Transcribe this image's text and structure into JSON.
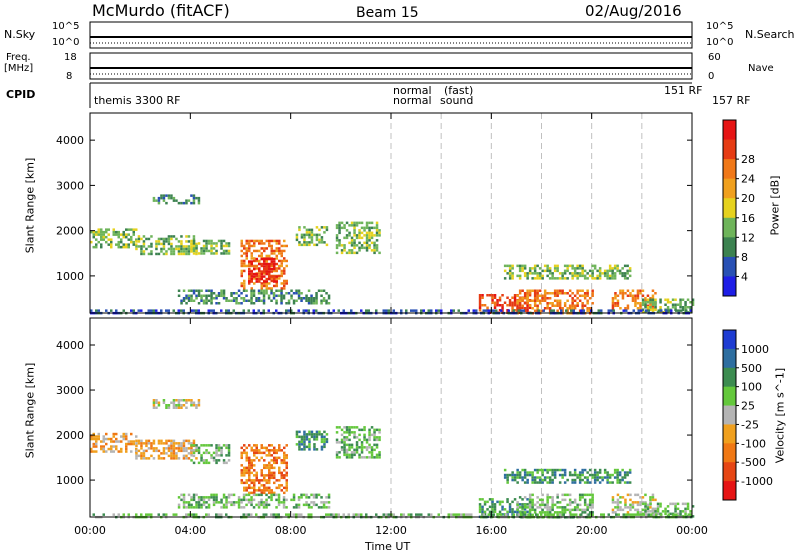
{
  "header": {
    "station": "McMurdo (fitACF)",
    "beam": "Beam 15",
    "date": "02/Aug/2016"
  },
  "status_panels": {
    "nsky_label": "N.Sky",
    "nsky_scale_top": "10^5",
    "nsky_scale_bottom": "10^0",
    "nsearch_label": "N.Search",
    "nsearch_scale_top": "10^5",
    "nsearch_scale_bottom": "10^0",
    "freq_label_1": "Freq.",
    "freq_label_2": "[MHz]",
    "freq_top": "18",
    "freq_bottom": "8",
    "nave_label": "Nave",
    "nave_top": "60",
    "nave_bottom": "0",
    "cpid_label": "CPID",
    "cpid_entries": [
      "themis 3300 RF",
      "normal",
      "normal",
      "(fast)",
      "sound",
      "151 RF",
      "157 RF"
    ]
  },
  "colors": {
    "power": [
      "#1e1ee6",
      "#2850b4",
      "#3c8250",
      "#6eb45a",
      "#e6d21e",
      "#f0a01e",
      "#f07818",
      "#e63c14",
      "#e61414"
    ],
    "velocity": [
      "#1e3cd2",
      "#2e6ea0",
      "#3c8c50",
      "#64c83c",
      "#b4b4b4",
      "#f0a01e",
      "#f07814",
      "#e64614",
      "#e61414"
    ],
    "grid": "#c0c0c0"
  },
  "chart_data": [
    {
      "type": "heatmap",
      "title": "Power",
      "ylabel": "Slant Range [km]",
      "xlabel": "Time UT",
      "x_ticks": [
        "00:00",
        "04:00",
        "08:00",
        "12:00",
        "16:00",
        "20:00",
        "00:00"
      ],
      "y_ticks": [
        "1000",
        "2000",
        "3000",
        "4000"
      ],
      "xlim": [
        0,
        24
      ],
      "ylim": [
        180,
        4600
      ],
      "colorbar_label": "Power [dB]",
      "colorbar_ticks": [
        "4",
        "8",
        "12",
        "16",
        "20",
        "24",
        "28"
      ],
      "regions": [
        {
          "t0": 0.0,
          "t1": 1.8,
          "r0": 1650,
          "r1": 2050,
          "level": 3
        },
        {
          "t0": 1.8,
          "t1": 4.2,
          "r0": 1500,
          "r1": 1900,
          "level": 3
        },
        {
          "t0": 2.5,
          "t1": 4.3,
          "r0": 2600,
          "r1": 2800,
          "level": 2
        },
        {
          "t0": 4.0,
          "t1": 5.5,
          "r0": 1500,
          "r1": 1800,
          "level": 3
        },
        {
          "t0": 6.0,
          "t1": 7.8,
          "r0": 700,
          "r1": 1800,
          "level": 6
        },
        {
          "t0": 6.3,
          "t1": 7.4,
          "r0": 900,
          "r1": 1400,
          "level": 8
        },
        {
          "t0": 8.2,
          "t1": 9.4,
          "r0": 1700,
          "r1": 2100,
          "level": 3
        },
        {
          "t0": 9.8,
          "t1": 11.5,
          "r0": 1500,
          "r1": 2200,
          "level": 3
        },
        {
          "t0": 3.5,
          "t1": 9.5,
          "r0": 400,
          "r1": 700,
          "level": 2
        },
        {
          "t0": 15.5,
          "t1": 17.5,
          "r0": 200,
          "r1": 600,
          "level": 7
        },
        {
          "t0": 17.0,
          "t1": 20.0,
          "r0": 200,
          "r1": 700,
          "level": 6
        },
        {
          "t0": 16.5,
          "t1": 21.5,
          "r0": 950,
          "r1": 1250,
          "level": 3
        },
        {
          "t0": 20.8,
          "t1": 22.5,
          "r0": 300,
          "r1": 700,
          "level": 6
        },
        {
          "t0": 22.0,
          "t1": 24.0,
          "r0": 200,
          "r1": 500,
          "level": 3
        },
        {
          "t0": 0.0,
          "t1": 24.0,
          "r0": 180,
          "r1": 260,
          "level": 1
        }
      ]
    },
    {
      "type": "heatmap",
      "title": "Velocity",
      "ylabel": "Slant Range [km]",
      "xlabel": "Time UT",
      "x_ticks": [
        "00:00",
        "04:00",
        "08:00",
        "12:00",
        "16:00",
        "20:00",
        "00:00"
      ],
      "y_ticks": [
        "1000",
        "2000",
        "3000",
        "4000"
      ],
      "xlim": [
        0,
        24
      ],
      "ylim": [
        180,
        4600
      ],
      "colorbar_label": "Velocity [m s^-1]",
      "colorbar_ticks": [
        "1000",
        "500",
        "100",
        "25",
        "-25",
        "-100",
        "-500",
        "-1000"
      ],
      "regions": [
        {
          "t0": 0.0,
          "t1": 1.8,
          "r0": 1650,
          "r1": 2050,
          "level": 5
        },
        {
          "t0": 1.8,
          "t1": 4.2,
          "r0": 1500,
          "r1": 1900,
          "level": 5
        },
        {
          "t0": 2.5,
          "t1": 4.3,
          "r0": 2600,
          "r1": 2800,
          "level": 4
        },
        {
          "t0": 4.0,
          "t1": 5.5,
          "r0": 1400,
          "r1": 1800,
          "level": 3
        },
        {
          "t0": 6.0,
          "t1": 7.8,
          "r0": 700,
          "r1": 1800,
          "level": 6
        },
        {
          "t0": 8.2,
          "t1": 9.4,
          "r0": 1700,
          "r1": 2100,
          "level": 2
        },
        {
          "t0": 9.8,
          "t1": 11.5,
          "r0": 1500,
          "r1": 2200,
          "level": 3
        },
        {
          "t0": 3.5,
          "t1": 9.5,
          "r0": 400,
          "r1": 700,
          "level": 3
        },
        {
          "t0": 15.5,
          "t1": 17.5,
          "r0": 200,
          "r1": 600,
          "level": 2
        },
        {
          "t0": 17.0,
          "t1": 20.0,
          "r0": 200,
          "r1": 700,
          "level": 3
        },
        {
          "t0": 16.5,
          "t1": 21.5,
          "r0": 950,
          "r1": 1250,
          "level": 2
        },
        {
          "t0": 20.8,
          "t1": 22.5,
          "r0": 300,
          "r1": 700,
          "level": 4
        },
        {
          "t0": 22.0,
          "t1": 24.0,
          "r0": 200,
          "r1": 500,
          "level": 3
        },
        {
          "t0": 0.0,
          "t1": 24.0,
          "r0": 180,
          "r1": 260,
          "level": 3
        }
      ]
    }
  ]
}
